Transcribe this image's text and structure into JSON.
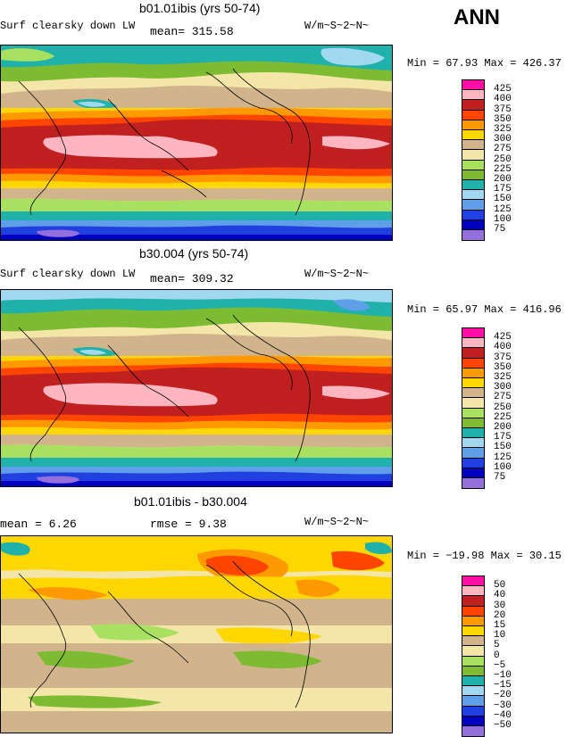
{
  "corner_label": "ANN",
  "panels": [
    {
      "title": "b01.01ibis (yrs 50-74)",
      "var_name": "Surf clearsky down LW",
      "stat_text": "mean= 315.58",
      "units": "W/m~S~2~N~",
      "minmax": "Min =  67.93 Max = 426.37",
      "legend": {
        "labels": [
          "425",
          "400",
          "375",
          "350",
          "325",
          "300",
          "275",
          "250",
          "225",
          "200",
          "175",
          "150",
          "125",
          "100",
          "75"
        ],
        "colors": [
          "#ff0fa5",
          "#ffb6c1",
          "#c02020",
          "#ff4500",
          "#ff9900",
          "#ffd700",
          "#d2b48c",
          "#f3e6a8",
          "#a8e060",
          "#7dbb33",
          "#20b2aa",
          "#a0d8ef",
          "#5f9ee8",
          "#2040e0",
          "#0000c0",
          "#9370db"
        ]
      }
    },
    {
      "title": "b30.004 (yrs 50-74)",
      "var_name": "Surf clearsky down LW",
      "stat_text": "mean= 309.32",
      "units": "W/m~S~2~N~",
      "minmax": "Min =  65.97 Max = 416.96",
      "legend": {
        "labels": [
          "425",
          "400",
          "375",
          "350",
          "325",
          "300",
          "275",
          "250",
          "225",
          "200",
          "175",
          "150",
          "125",
          "100",
          "75"
        ],
        "colors": [
          "#ff0fa5",
          "#ffb6c1",
          "#c02020",
          "#ff4500",
          "#ff9900",
          "#ffd700",
          "#d2b48c",
          "#f3e6a8",
          "#a8e060",
          "#7dbb33",
          "#20b2aa",
          "#a0d8ef",
          "#5f9ee8",
          "#2040e0",
          "#0000c0",
          "#9370db"
        ]
      }
    },
    {
      "title": "b01.01ibis - b30.004",
      "stat_left": "mean =    6.26",
      "stat_right": "rmse =    9.38",
      "units": "W/m~S~2~N~",
      "minmax": "Min = −19.98 Max =  30.15",
      "legend": {
        "labels": [
          "50",
          "40",
          "30",
          "20",
          "15",
          "10",
          "5",
          "0",
          "−5",
          "−10",
          "−15",
          "−20",
          "−30",
          "−40",
          "−50"
        ],
        "colors": [
          "#ff0fa5",
          "#ffb6c1",
          "#c02020",
          "#ff4500",
          "#ff9900",
          "#ffd700",
          "#d2b48c",
          "#f3e6a8",
          "#a8e060",
          "#7dbb33",
          "#20b2aa",
          "#a0d8ef",
          "#5f9ee8",
          "#2040e0",
          "#0000c0",
          "#9370db"
        ]
      }
    }
  ]
}
